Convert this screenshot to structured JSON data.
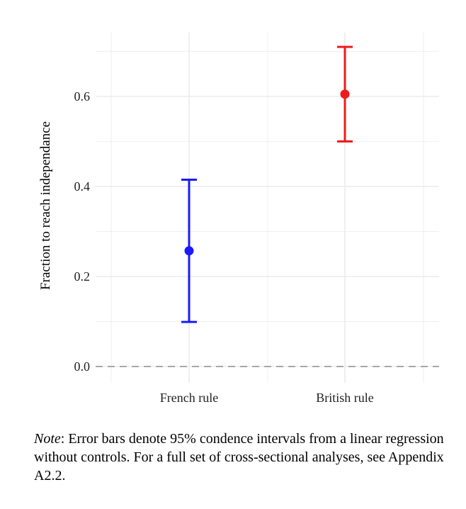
{
  "chart_data": {
    "type": "scatter",
    "ylabel": "Fraction to reach independance",
    "xlabel": "",
    "categories": [
      "French rule",
      "British rule"
    ],
    "y_ticks": [
      "0.0",
      "0.2",
      "0.4",
      "0.6"
    ],
    "ylim": [
      0.0,
      0.6
    ],
    "grid": true,
    "reference_line": {
      "y": 0.0,
      "style": "dashed"
    },
    "points": [
      {
        "category": "French rule",
        "estimate": 0.257,
        "ci_low": 0.099,
        "ci_high": 0.415,
        "color": "#1a1aff"
      },
      {
        "category": "British rule",
        "estimate": 0.605,
        "ci_low": 0.5,
        "ci_high": 0.71,
        "color": "#ee1c1c"
      }
    ]
  },
  "note": {
    "label": "Note",
    "text": ": Error bars denote 95% condence intervals from a linear regression without controls. For a full set of cross-sectional analyses, see Appendix A2.2."
  },
  "colors": {
    "grid": "#ebebeb",
    "reference_line": "#a8a8a8"
  }
}
